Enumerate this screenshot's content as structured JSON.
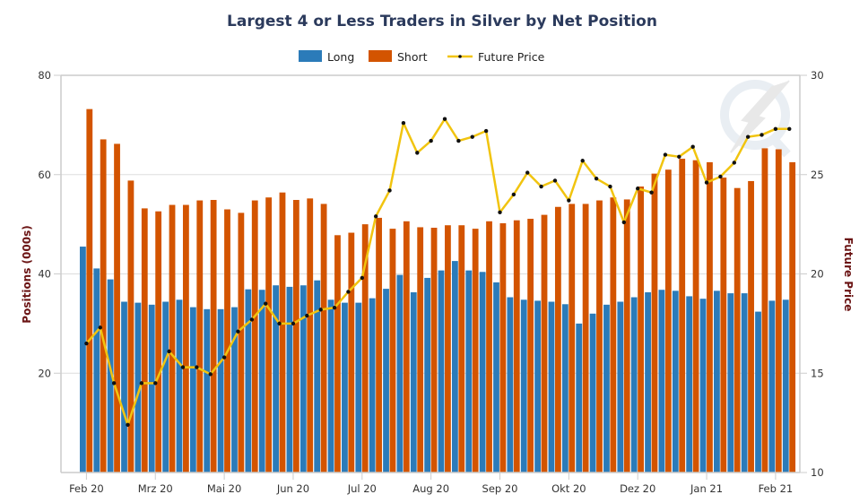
{
  "chart_data": {
    "type": "bar",
    "title": "Largest 4 or Less Traders in Silver by Net Position",
    "legend": {
      "placement": "top-center",
      "entries": [
        {
          "name": "Long",
          "kind": "bar",
          "color": "#2b7bb9"
        },
        {
          "name": "Short",
          "kind": "bar",
          "color": "#d35400"
        },
        {
          "name": "Future Price",
          "kind": "line",
          "color": "#f1c40f",
          "marker_color": "#111111"
        }
      ]
    },
    "xlabel": "",
    "ylabel": "Positions (000s)",
    "y2label": "Future Price",
    "ylim": [
      0,
      80
    ],
    "y2lim": [
      10,
      30
    ],
    "yticks": [
      20,
      40,
      60,
      80
    ],
    "y2ticks": [
      10,
      15,
      20,
      25,
      30
    ],
    "grid": true,
    "x_tick_labels": [
      {
        "index": 0,
        "label": "Feb 20"
      },
      {
        "index": 5,
        "label": "Mrz 20"
      },
      {
        "index": 10,
        "label": "Mai 20"
      },
      {
        "index": 15,
        "label": "Jun 20"
      },
      {
        "index": 20,
        "label": "Jul 20"
      },
      {
        "index": 25,
        "label": "Aug 20"
      },
      {
        "index": 30,
        "label": "Sep 20"
      },
      {
        "index": 35,
        "label": "Okt 20"
      },
      {
        "index": 40,
        "label": "Dez 20"
      },
      {
        "index": 45,
        "label": "Jan 21"
      },
      {
        "index": 50,
        "label": "Feb 21"
      }
    ],
    "series": [
      {
        "name": "Long",
        "axis": "left",
        "values": [
          45.5,
          41.1,
          38.9,
          34.4,
          34.2,
          33.8,
          34.4,
          34.8,
          33.3,
          32.9,
          32.9,
          33.3,
          36.9,
          36.8,
          37.7,
          37.4,
          37.7,
          38.7,
          34.8,
          34.2,
          34.2,
          35.1,
          37.0,
          39.8,
          36.3,
          39.2,
          40.7,
          42.6,
          40.7,
          40.4,
          38.3,
          35.3,
          34.8,
          34.6,
          34.4,
          33.9,
          30.0,
          32.0,
          33.8,
          34.4,
          35.3,
          36.3,
          36.8,
          36.6,
          35.5,
          35.0,
          36.6,
          36.1,
          36.1,
          32.4,
          34.6,
          34.8
        ]
      },
      {
        "name": "Short",
        "axis": "left",
        "values": [
          73.2,
          67.1,
          66.2,
          58.8,
          53.2,
          52.6,
          53.9,
          53.9,
          54.8,
          54.9,
          53.0,
          52.3,
          54.8,
          55.4,
          56.4,
          54.9,
          55.2,
          54.1,
          47.8,
          48.3,
          50.0,
          51.3,
          49.1,
          50.6,
          49.4,
          49.3,
          49.8,
          49.8,
          49.1,
          50.6,
          50.2,
          50.8,
          51.1,
          51.9,
          53.5,
          54.1,
          54.1,
          54.8,
          55.4,
          55.0,
          57.6,
          60.2,
          61.0,
          63.2,
          62.9,
          62.5,
          59.4,
          57.3,
          58.7,
          65.3,
          65.1,
          62.5
        ]
      },
      {
        "name": "Future Price",
        "axis": "right",
        "values": [
          16.5,
          17.3,
          14.5,
          12.4,
          14.5,
          14.5,
          16.1,
          15.3,
          15.3,
          14.95,
          15.8,
          17.1,
          17.7,
          18.5,
          17.5,
          17.5,
          17.9,
          18.2,
          18.3,
          19.1,
          19.8,
          22.9,
          24.2,
          27.6,
          26.1,
          26.7,
          27.8,
          26.7,
          26.9,
          27.2,
          23.1,
          24.0,
          25.1,
          24.4,
          24.7,
          23.7,
          25.7,
          24.8,
          24.4,
          22.6,
          24.3,
          24.1,
          26.0,
          25.9,
          26.4,
          24.6,
          24.9,
          25.6,
          26.9,
          27.0,
          27.3,
          27.3
        ]
      }
    ]
  }
}
